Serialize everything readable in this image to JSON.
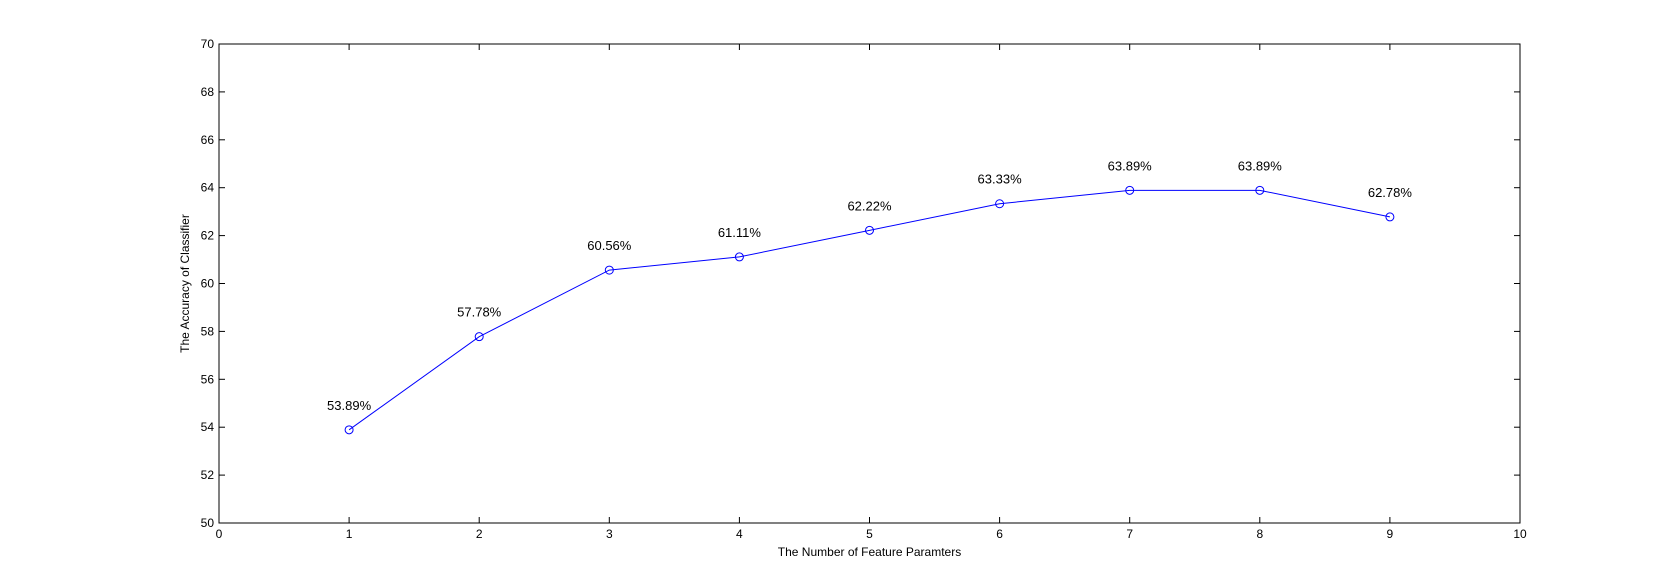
{
  "chart_data": {
    "type": "line",
    "title": "",
    "xlabel": "The Number of Feature Paramters",
    "ylabel": "The Accuracy of Classifier",
    "xlim": [
      0,
      10
    ],
    "ylim": [
      50,
      70
    ],
    "xticks": [
      0,
      1,
      2,
      3,
      4,
      5,
      6,
      7,
      8,
      9,
      10
    ],
    "yticks": [
      50,
      52,
      54,
      56,
      58,
      60,
      62,
      64,
      66,
      68,
      70
    ],
    "grid": false,
    "legend": "none",
    "series": [
      {
        "color": "#0000ff",
        "marker": "circle",
        "x": [
          1,
          2,
          3,
          4,
          5,
          6,
          7,
          8,
          9
        ],
        "values": [
          53.89,
          57.78,
          60.56,
          61.11,
          62.22,
          63.33,
          63.89,
          63.89,
          62.78
        ],
        "labels": [
          "53.89%",
          "57.78%",
          "60.56%",
          "61.11%",
          "62.22%",
          "63.33%",
          "63.89%",
          "63.89%",
          "62.78%"
        ]
      }
    ]
  }
}
